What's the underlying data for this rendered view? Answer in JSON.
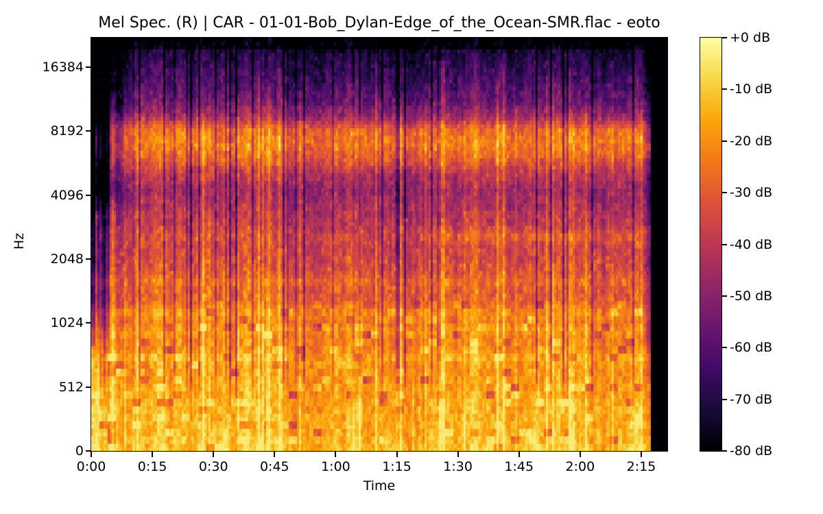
{
  "chart_data": {
    "type": "heatmap",
    "subtype": "mel-spectrogram",
    "title": "Mel Spec. (R) | CAR - 01-01-Bob_Dylan-Edge_of_the_Ocean-SMR.flac - eoto",
    "xlabel": "Time",
    "ylabel": "Hz",
    "x_tick_labels": [
      "0:00",
      "0:15",
      "0:30",
      "0:45",
      "1:00",
      "1:15",
      "1:30",
      "1:45",
      "2:00",
      "2:15"
    ],
    "x_tick_seconds": [
      0,
      15,
      30,
      45,
      60,
      75,
      90,
      105,
      120,
      135
    ],
    "x_max_seconds": 141.4,
    "y_tick_labels": [
      "16384",
      "8192",
      "4096",
      "2048",
      "1024",
      "512",
      "0"
    ],
    "y_scale": "mel",
    "colorbar": {
      "tick_labels": [
        "+0 dB",
        "-10 dB",
        "-20 dB",
        "-30 dB",
        "-40 dB",
        "-50 dB",
        "-60 dB",
        "-70 dB",
        "-80 dB"
      ],
      "max_db": 0,
      "min_db": -80
    },
    "colormap": {
      "name": "inferno",
      "stops": [
        [
          0,
          "#000004"
        ],
        [
          0.1,
          "#160b39"
        ],
        [
          0.2,
          "#420a68"
        ],
        [
          0.3,
          "#6a176e"
        ],
        [
          0.4,
          "#932667"
        ],
        [
          0.5,
          "#bc3754"
        ],
        [
          0.6,
          "#dd513a"
        ],
        [
          0.7,
          "#f37819"
        ],
        [
          0.8,
          "#fca50a"
        ],
        [
          0.9,
          "#f6d746"
        ],
        [
          1,
          "#fcffa4"
        ]
      ]
    },
    "render": {
      "cols": 280,
      "rows": 110,
      "audio_end_seconds": 137.3,
      "intro_end_seconds": 8.5,
      "hiband_start_seconds": 10,
      "profile_db": [
        [
          0,
          -11
        ],
        [
          0.03,
          -13
        ],
        [
          0.1,
          -15
        ],
        [
          0.16,
          -17
        ],
        [
          0.22,
          -19
        ],
        [
          0.28,
          -22
        ],
        [
          0.34,
          -27
        ],
        [
          0.42,
          -31
        ],
        [
          0.5,
          -36
        ],
        [
          0.57,
          -40
        ],
        [
          0.63,
          -46
        ],
        [
          0.67,
          -40
        ],
        [
          0.71,
          -28
        ],
        [
          0.745,
          -23
        ],
        [
          0.78,
          -27
        ],
        [
          0.81,
          -45
        ],
        [
          0.85,
          -56
        ],
        [
          0.9,
          -63
        ],
        [
          0.95,
          -69
        ],
        [
          1,
          -76
        ]
      ],
      "stripes": [
        [
          0.335,
          0.012,
          7
        ],
        [
          0.295,
          0.01,
          5
        ],
        [
          0.41,
          0.01,
          4
        ],
        [
          0.52,
          0.013,
          3
        ],
        [
          0.225,
          0.012,
          4
        ]
      ],
      "late_stripe": {
        "center": 0.52,
        "width": 0.013,
        "amp": 5,
        "after_seconds": 82
      },
      "events": [
        [
          86,
          0.7,
          12,
          0.95
        ],
        [
          43.5,
          0.6,
          9,
          0.88
        ],
        [
          81,
          0.5,
          7,
          0.85
        ],
        [
          25,
          0.5,
          6,
          0.8
        ],
        [
          118,
          0.5,
          6,
          0.82
        ]
      ]
    }
  }
}
